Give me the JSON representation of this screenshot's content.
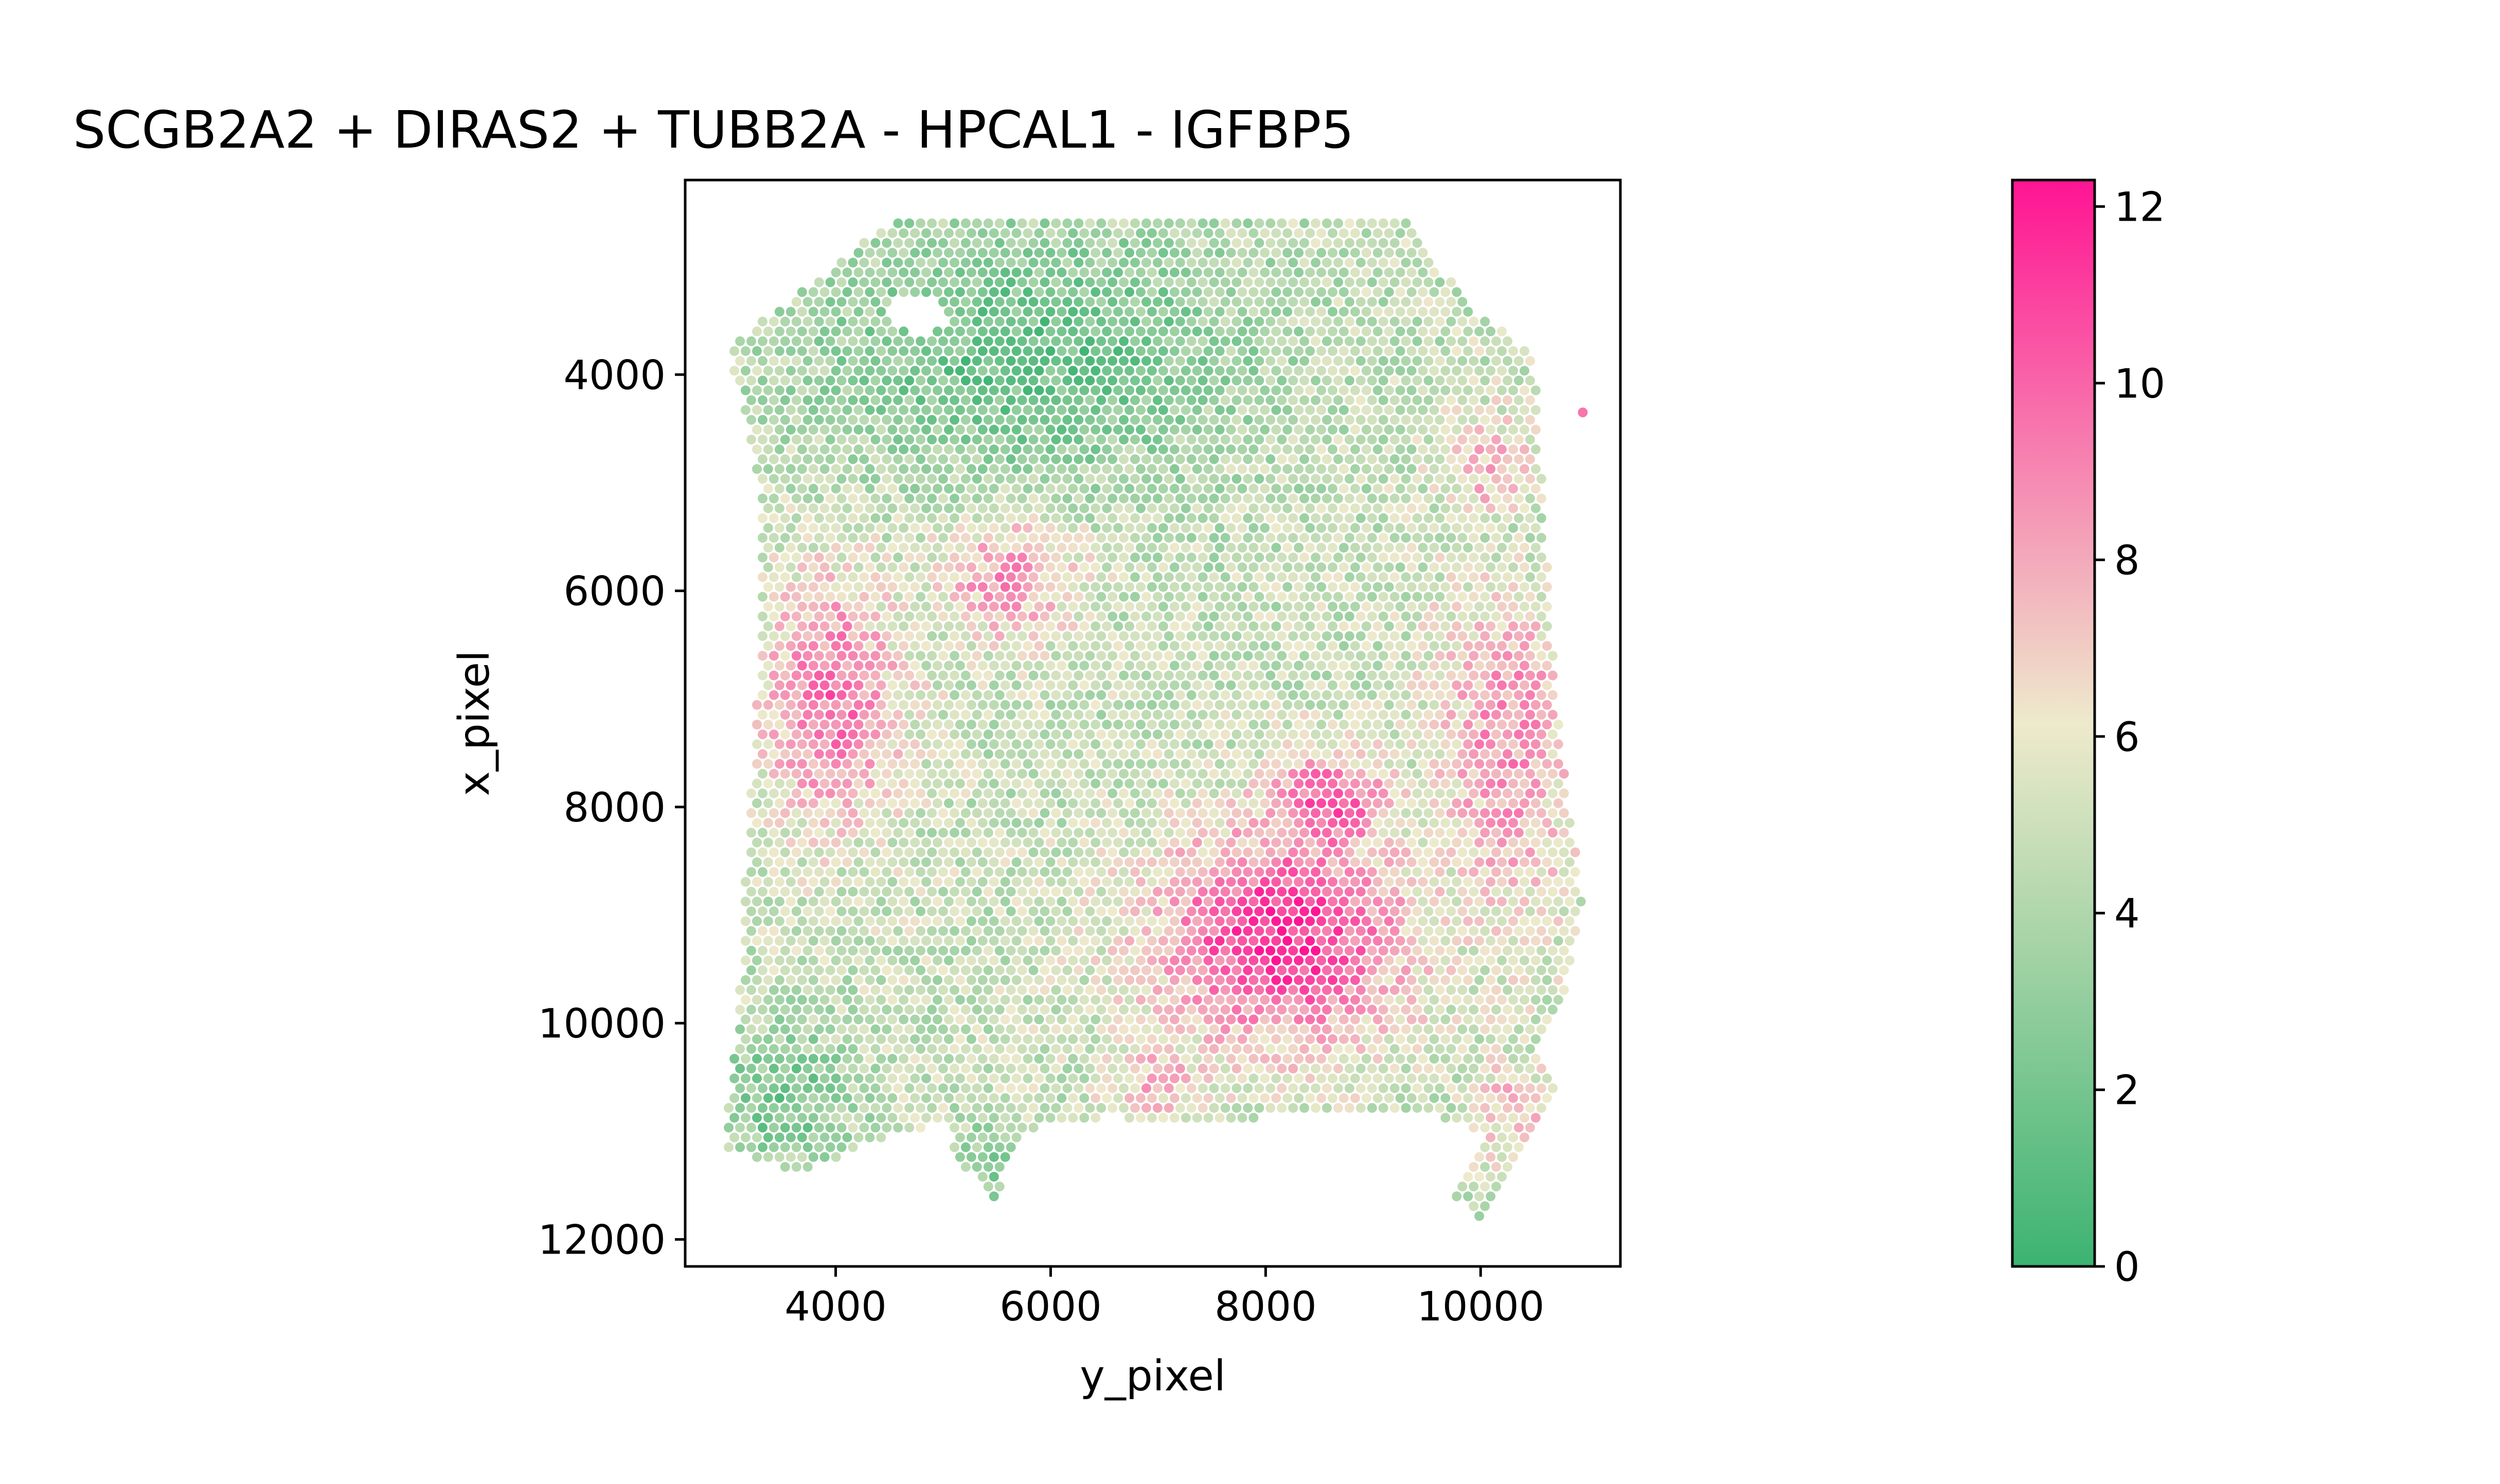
{
  "chart_data": {
    "type": "scatter",
    "title": "SCGB2A2 + DIRAS2 + TUBB2A - HPCAL1 - IGFBP5",
    "xlabel": "y_pixel",
    "ylabel": "x_pixel",
    "xlim": [
      2600,
      11300
    ],
    "ylim": [
      12250,
      2200
    ],
    "y_inverted": true,
    "xticks": [
      4000,
      6000,
      8000,
      10000
    ],
    "xtick_labels": [
      "4000",
      "6000",
      "8000",
      "10000"
    ],
    "yticks": [
      4000,
      6000,
      8000,
      10000,
      12000
    ],
    "ytick_labels": [
      "4000",
      "6000",
      "8000",
      "10000",
      "12000"
    ],
    "grid": false,
    "legend": "none",
    "colorbar": {
      "vmin": 0,
      "vmax": 12.3,
      "ticks": [
        0,
        2,
        4,
        6,
        8,
        10,
        12
      ],
      "tick_labels": [
        "0",
        "2",
        "4",
        "6",
        "8",
        "10",
        "12"
      ],
      "colors": [
        "#3cb371",
        "#eeeacc",
        "#ff1493"
      ]
    },
    "spot_spacing": 105,
    "tissue_outline": [
      [
        3050,
        3700
      ],
      [
        4500,
        2600
      ],
      [
        9350,
        2600
      ],
      [
        9900,
        3400
      ],
      [
        10500,
        3800
      ],
      [
        10600,
        5500
      ],
      [
        10750,
        7500
      ],
      [
        10950,
        8900
      ],
      [
        10750,
        9900
      ],
      [
        10500,
        10300
      ],
      [
        10700,
        10600
      ],
      [
        10500,
        11000
      ],
      [
        10000,
        11800
      ],
      [
        9700,
        11600
      ],
      [
        10050,
        11000
      ],
      [
        9300,
        10800
      ],
      [
        7500,
        10900
      ],
      [
        6800,
        10900
      ],
      [
        6600,
        10850
      ],
      [
        5700,
        11000
      ],
      [
        5500,
        11650
      ],
      [
        5150,
        11300
      ],
      [
        5000,
        10900
      ],
      [
        4200,
        11150
      ],
      [
        3700,
        11400
      ],
      [
        2950,
        11150
      ],
      [
        3100,
        9800
      ],
      [
        3200,
        8000
      ],
      [
        3300,
        6500
      ],
      [
        3300,
        5300
      ],
      [
        3200,
        4500
      ],
      [
        3000,
        3800
      ]
    ],
    "holes": [
      {
        "center": [
          4750,
          3450
        ],
        "radius": [
          280,
          160
        ]
      }
    ],
    "isolated_points": [
      {
        "x": 10950,
        "y": 4350,
        "value": 9.5
      }
    ],
    "expression_hotspots": [
      {
        "center": [
          8150,
          9200
        ],
        "radius": [
          1250,
          1050
        ],
        "peak": 11.5
      },
      {
        "center": [
          8550,
          8000
        ],
        "radius": [
          650,
          550
        ],
        "peak": 10.5
      },
      {
        "center": [
          3950,
          7000
        ],
        "radius": [
          700,
          1200
        ],
        "peak": 9.5
      },
      {
        "center": [
          5600,
          5900
        ],
        "radius": [
          700,
          600
        ],
        "peak": 8.5
      },
      {
        "center": [
          10250,
          7300
        ],
        "radius": [
          700,
          1900
        ],
        "peak": 8.5
      },
      {
        "center": [
          10100,
          4900
        ],
        "radius": [
          500,
          600
        ],
        "peak": 7.5
      },
      {
        "center": [
          10300,
          10800
        ],
        "radius": [
          400,
          500
        ],
        "peak": 7.5
      },
      {
        "center": [
          7000,
          10500
        ],
        "radius": [
          500,
          400
        ],
        "peak": 8.0
      }
    ],
    "low_expression_regions": [
      {
        "center": [
          5800,
          3800
        ],
        "radius": [
          2200,
          1300
        ],
        "level": 1.5
      },
      {
        "center": [
          10300,
          5700
        ],
        "radius": [
          500,
          900
        ],
        "level": 2.5
      },
      {
        "center": [
          3500,
          10700
        ],
        "radius": [
          700,
          700
        ],
        "level": 2.0
      },
      {
        "center": [
          5400,
          11300
        ],
        "radius": [
          400,
          400
        ],
        "level": 2.5
      }
    ],
    "background_level": 4.8
  }
}
